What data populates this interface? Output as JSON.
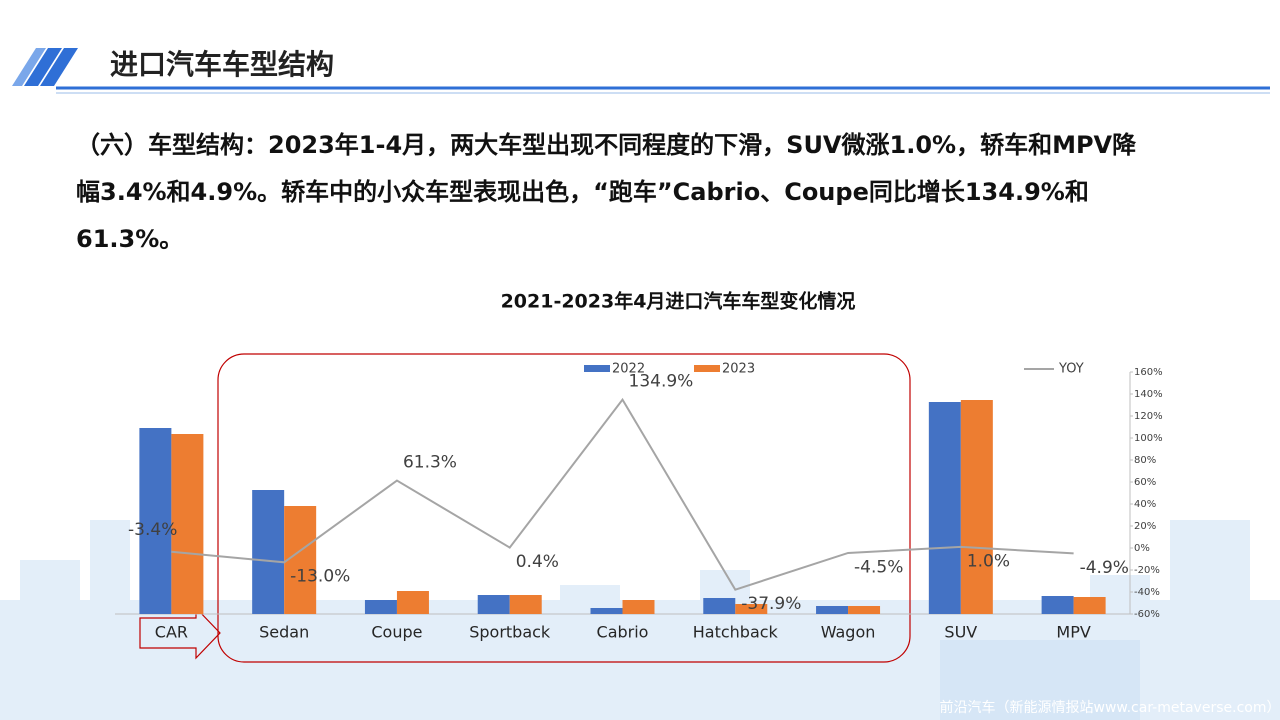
{
  "header": {
    "title": "进口汽车车型结构",
    "paragraph": [
      "（六）车型结构：2023年1-4月，两大车型出现不同程度的下滑，SUV微涨1.0%，轿车和MPV降",
      "幅3.4%和4.9%。轿车中的小众车型表现出色，“跑车”Cabrio、Coupe同比增长134.9%和",
      "61.3%。"
    ]
  },
  "watermark": "前沿汽车（新能源情报站www.car-metaverse.com）",
  "chart_data": {
    "type": "bar_line",
    "title": "2021-2023年4月进口汽车车型变化情况",
    "categories": [
      "CAR",
      "Sedan",
      "Coupe",
      "Sportback",
      "Cabrio",
      "Hatchback",
      "Wagon",
      "SUV",
      "MPV"
    ],
    "ylim": [
      0,
      242
    ],
    "y2lim": [
      -60,
      160
    ],
    "y2ticks": [
      {
        "value": -60,
        "label": "-60%"
      },
      {
        "value": -40,
        "label": "-40%"
      },
      {
        "value": -20,
        "label": "-20%"
      },
      {
        "value": 0,
        "label": "0%"
      },
      {
        "value": 20,
        "label": "20%"
      },
      {
        "value": 40,
        "label": "40%"
      },
      {
        "value": 60,
        "label": "60%"
      },
      {
        "value": 80,
        "label": "80%"
      },
      {
        "value": 100,
        "label": "100%"
      },
      {
        "value": 120,
        "label": "120%"
      },
      {
        "value": 140,
        "label": "140%"
      },
      {
        "value": 160,
        "label": "160%"
      }
    ],
    "series": [
      {
        "name": "2022",
        "color": "#4472c4",
        "values": [
          186,
          124,
          14,
          19,
          6,
          16,
          8,
          212,
          18
        ]
      },
      {
        "name": "2023",
        "color": "#ed7d31",
        "values": [
          180,
          108,
          23,
          19,
          14,
          10,
          8,
          214,
          17
        ]
      },
      {
        "name": "YOY",
        "color": "#a5a5a5",
        "axis": "y2",
        "values": [
          -3.4,
          -13.0,
          61.3,
          0.4,
          134.9,
          -37.9,
          -4.5,
          1.0,
          -4.9
        ],
        "value_labels": [
          "-3.4%",
          "-13.0%",
          "61.3%",
          "0.4%",
          "134.9%",
          "-37.9%",
          "-4.5%",
          "1.0%",
          "-4.9%"
        ]
      }
    ]
  }
}
